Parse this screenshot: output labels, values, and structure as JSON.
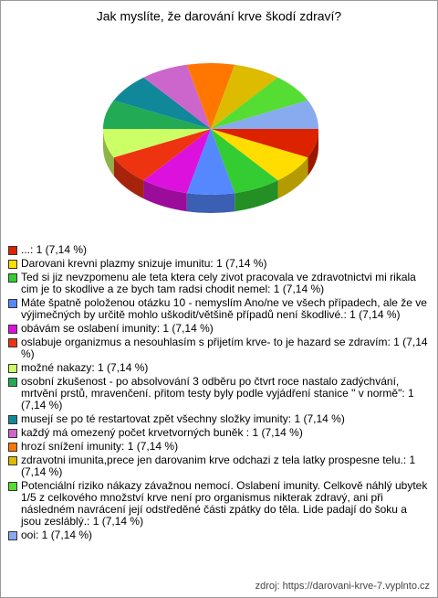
{
  "chart_data": {
    "type": "pie",
    "title": "Jak myslíte, že darování krve škodí zdraví?",
    "source": "zdroj: https://darovani-krve-7.vyplnto.cz",
    "categories": [
      "...: 1 (7,14 %)",
      "Darovani krevni plazmy snizuje imunitu: 1 (7,14 %)",
      "Ted si jiz nevzpomenu ale teta ktera cely zivot pracovala ve zdravotnictvi mi rikala cim je to skodlive a ze bych tam radsi chodit nemel: 1 (7,14 %)",
      "Máte špatně položenou otázku 10 - nemyslím Ano/ne ve všech případech, ale že ve výjimečných by určitě mohlo uškodit/většině případů není škodlivé.: 1 (7,14 %)",
      "obávám se oslabení imunity: 1 (7,14 %)",
      "oslabuje organizmus a nesouhlasím s přijetím krve- to je hazard se zdravím: 1 (7,14 %)",
      "možné nakazy: 1 (7,14 %)",
      "osobní zkušenost - po absolvování 3 odběru po čtvrt roce nastalo zadýchvání, mrtvění prstů, mravenčení. přitom testy byly podle vyjádření stanice \" v normě\": 1 (7,14 %)",
      "musejí se po té restartovat zpět všechny složky imunity: 1 (7,14 %)",
      "každý má omezený počet krvetvorných buněk : 1 (7,14 %)",
      "hrozí snížení imunity: 1 (7,14 %)",
      "zdravotni imunita,prece jen darovanim krve odchazi z tela latky prospesne telu.: 1 (7,14 %)",
      "Potenciální riziko nákazy závažnou nemocí. Oslabení imunity. Celkově náhlý ubytek 1/5 z celkového množství krve není pro organismus nikterak zdravý, ani při následném navrácení její odstředěné části zpátky do těla. Lide padají do šoku a jsou zesláblý.: 1 (7,14 %)",
      "ooi: 1 (7,14 %)"
    ],
    "values": [
      1,
      1,
      1,
      1,
      1,
      1,
      1,
      1,
      1,
      1,
      1,
      1,
      1,
      1
    ],
    "colors": [
      "#dd2200",
      "#ffdd00",
      "#33cc33",
      "#5588ff",
      "#dd11dd",
      "#ee3311",
      "#ccff66",
      "#22aa55",
      "#118899",
      "#cc66cc",
      "#ff7700",
      "#ddbb00",
      "#55dd33",
      "#88aaee"
    ]
  }
}
